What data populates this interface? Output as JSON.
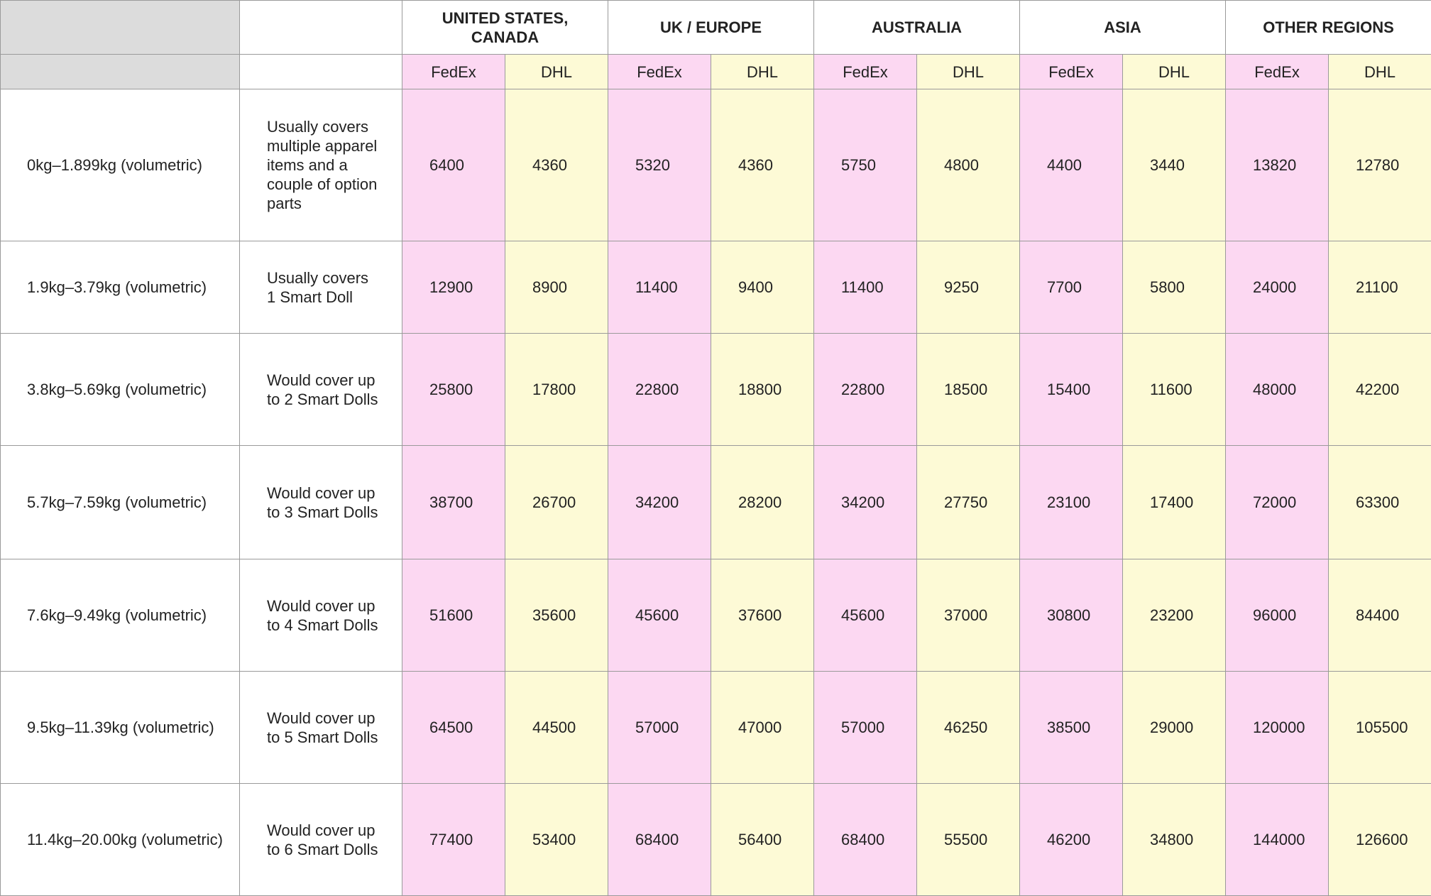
{
  "table": {
    "regions": [
      {
        "name": "UNITED STATES, CANADA",
        "carriers": [
          "FedEx",
          "DHL"
        ]
      },
      {
        "name": "UK / EUROPE",
        "carriers": [
          "FedEx",
          "DHL"
        ]
      },
      {
        "name": "AUSTRALIA",
        "carriers": [
          "FedEx",
          "DHL"
        ]
      },
      {
        "name": "ASIA",
        "carriers": [
          "FedEx",
          "DHL"
        ]
      },
      {
        "name": "OTHER REGIONS",
        "carriers": [
          "FedEx",
          "DHL"
        ]
      }
    ],
    "rows": [
      {
        "weight": "0kg–1.899kg (volumetric)",
        "description": "Usually covers multiple apparel items and a couple of option parts",
        "prices": [
          6400,
          4360,
          5320,
          4360,
          5750,
          4800,
          4400,
          3440,
          13820,
          12780
        ]
      },
      {
        "weight": "1.9kg–3.79kg (volumetric)",
        "description": "Usually covers 1 Smart Doll",
        "prices": [
          12900,
          8900,
          11400,
          9400,
          11400,
          9250,
          7700,
          5800,
          24000,
          21100
        ]
      },
      {
        "weight": "3.8kg–5.69kg (volumetric)",
        "description": "Would cover up to 2 Smart Dolls",
        "prices": [
          25800,
          17800,
          22800,
          18800,
          22800,
          18500,
          15400,
          11600,
          48000,
          42200
        ]
      },
      {
        "weight": "5.7kg–7.59kg (volumetric)",
        "description": "Would cover up to 3 Smart Dolls",
        "prices": [
          38700,
          26700,
          34200,
          28200,
          34200,
          27750,
          23100,
          17400,
          72000,
          63300
        ]
      },
      {
        "weight": "7.6kg–9.49kg (volumetric)",
        "description": "Would cover up to 4 Smart Dolls",
        "prices": [
          51600,
          35600,
          45600,
          37600,
          45600,
          37000,
          30800,
          23200,
          96000,
          84400
        ]
      },
      {
        "weight": "9.5kg–11.39kg (volumetric)",
        "description": "Would cover up to 5 Smart Dolls",
        "prices": [
          64500,
          44500,
          57000,
          47000,
          57000,
          46250,
          38500,
          29000,
          120000,
          105500
        ]
      },
      {
        "weight": "11.4kg–20.00kg (volumetric)",
        "description": "Would cover up to 6 Smart Dolls",
        "prices": [
          77400,
          53400,
          68400,
          56400,
          68400,
          55500,
          46200,
          34800,
          144000,
          126600
        ]
      }
    ]
  }
}
